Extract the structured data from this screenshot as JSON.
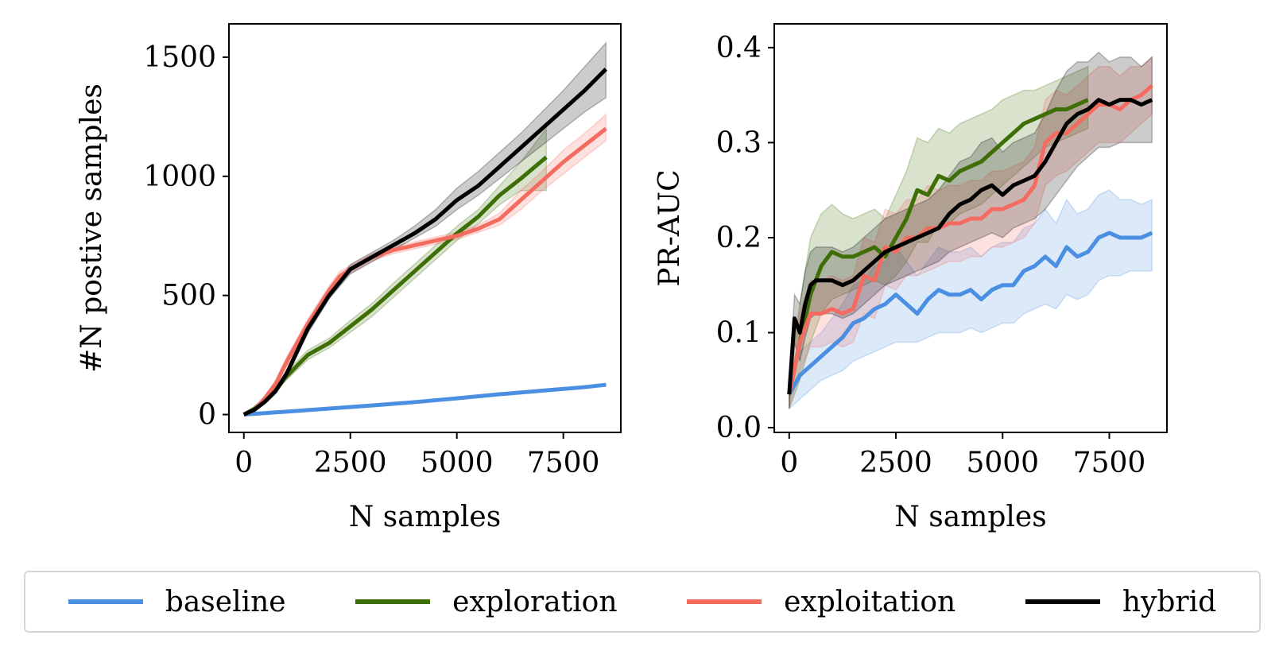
{
  "colors": {
    "baseline": "#4a8fe2",
    "exploration": "#3e6e06",
    "exploitation": "#f46b60",
    "hybrid": "#000000"
  },
  "legend": {
    "placement": "bottom",
    "items": [
      {
        "key": "baseline",
        "label": "baseline"
      },
      {
        "key": "exploration",
        "label": "exploration"
      },
      {
        "key": "exploitation",
        "label": "exploitation"
      },
      {
        "key": "hybrid",
        "label": "hybrid"
      }
    ]
  },
  "chart_data": [
    {
      "type": "line",
      "xlabel": "N samples",
      "ylabel": "#N postive samples",
      "xlim": [
        -350,
        8850
      ],
      "ylim": [
        -75,
        1640
      ],
      "xticks": [
        0,
        2500,
        5000,
        7500
      ],
      "yticks": [
        0,
        500,
        1000,
        1500
      ],
      "grid": false,
      "series": [
        {
          "name": "baseline",
          "key": "baseline",
          "x": [
            0,
            1000,
            2000,
            3000,
            4000,
            5000,
            6000,
            7000,
            8000,
            8500
          ],
          "y": [
            0,
            12,
            25,
            38,
            52,
            68,
            85,
            100,
            115,
            125
          ],
          "band_low": [
            0,
            10,
            22,
            35,
            49,
            65,
            82,
            97,
            112,
            121
          ],
          "band_high": [
            0,
            14,
            28,
            41,
            55,
            71,
            88,
            103,
            118,
            129
          ]
        },
        {
          "name": "exploration",
          "key": "exploration",
          "x": [
            0,
            250,
            500,
            750,
            1000,
            1500,
            2000,
            2500,
            3000,
            3500,
            4000,
            4500,
            5000,
            5500,
            6000,
            6500,
            7100
          ],
          "y": [
            0,
            25,
            65,
            105,
            160,
            250,
            300,
            370,
            440,
            520,
            600,
            680,
            760,
            830,
            920,
            990,
            1080
          ],
          "band_low": [
            0,
            20,
            55,
            95,
            145,
            230,
            280,
            345,
            410,
            490,
            570,
            650,
            730,
            800,
            880,
            940,
            940
          ],
          "band_high": [
            0,
            30,
            75,
            120,
            180,
            270,
            320,
            395,
            465,
            550,
            630,
            710,
            790,
            860,
            960,
            1060,
            1200
          ]
        },
        {
          "name": "exploitation",
          "key": "exploitation",
          "x": [
            0,
            250,
            500,
            750,
            1000,
            1500,
            2000,
            2250,
            2500,
            3000,
            3500,
            4000,
            4500,
            5000,
            5500,
            6000,
            6500,
            7000,
            7500,
            8000,
            8500
          ],
          "y": [
            0,
            20,
            70,
            130,
            220,
            380,
            520,
            580,
            610,
            660,
            690,
            710,
            730,
            750,
            780,
            820,
            900,
            980,
            1060,
            1130,
            1200
          ],
          "band_low": [
            0,
            15,
            60,
            115,
            200,
            360,
            500,
            560,
            595,
            645,
            675,
            695,
            715,
            735,
            765,
            795,
            860,
            940,
            1010,
            1080,
            1150
          ],
          "band_high": [
            0,
            25,
            80,
            145,
            240,
            400,
            540,
            600,
            625,
            675,
            705,
            725,
            745,
            765,
            795,
            845,
            940,
            1020,
            1110,
            1180,
            1260
          ]
        },
        {
          "name": "hybrid",
          "key": "hybrid",
          "x": [
            0,
            250,
            500,
            750,
            1000,
            1500,
            2000,
            2500,
            3000,
            3500,
            4000,
            4500,
            5000,
            5500,
            6000,
            6500,
            7000,
            7500,
            8000,
            8500
          ],
          "y": [
            0,
            20,
            55,
            100,
            170,
            360,
            500,
            610,
            660,
            710,
            760,
            820,
            900,
            960,
            1040,
            1120,
            1200,
            1280,
            1360,
            1450
          ],
          "band_low": [
            0,
            15,
            45,
            88,
            155,
            340,
            485,
            590,
            640,
            690,
            740,
            790,
            860,
            920,
            990,
            1060,
            1130,
            1200,
            1270,
            1330
          ],
          "band_high": [
            0,
            25,
            65,
            112,
            185,
            380,
            515,
            630,
            680,
            730,
            790,
            860,
            950,
            1020,
            1100,
            1180,
            1270,
            1360,
            1460,
            1560
          ]
        }
      ]
    },
    {
      "type": "line",
      "xlabel": "N samples",
      "ylabel": "PR-AUC",
      "xlim": [
        -350,
        8850
      ],
      "ylim": [
        -0.005,
        0.425
      ],
      "xticks": [
        0,
        2500,
        5000,
        7500
      ],
      "yticks": [
        0.0,
        0.1,
        0.2,
        0.3,
        0.4
      ],
      "grid": false,
      "series": [
        {
          "name": "baseline",
          "key": "baseline",
          "x": [
            0,
            250,
            500,
            750,
            1000,
            1250,
            1500,
            1750,
            2000,
            2250,
            2500,
            2750,
            3000,
            3250,
            3500,
            3750,
            4000,
            4250,
            4500,
            4750,
            5000,
            5250,
            5500,
            5750,
            6000,
            6250,
            6500,
            6750,
            7000,
            7250,
            7500,
            7750,
            8000,
            8250,
            8500
          ],
          "y": [
            0.035,
            0.055,
            0.065,
            0.075,
            0.085,
            0.095,
            0.11,
            0.115,
            0.125,
            0.13,
            0.14,
            0.13,
            0.12,
            0.135,
            0.145,
            0.14,
            0.14,
            0.145,
            0.135,
            0.145,
            0.15,
            0.15,
            0.165,
            0.17,
            0.18,
            0.17,
            0.19,
            0.18,
            0.185,
            0.2,
            0.205,
            0.2,
            0.2,
            0.2,
            0.205
          ],
          "band_low": [
            0.02,
            0.03,
            0.04,
            0.05,
            0.055,
            0.06,
            0.07,
            0.075,
            0.08,
            0.085,
            0.09,
            0.09,
            0.09,
            0.095,
            0.1,
            0.1,
            0.1,
            0.105,
            0.1,
            0.105,
            0.11,
            0.11,
            0.12,
            0.125,
            0.13,
            0.125,
            0.14,
            0.135,
            0.14,
            0.155,
            0.16,
            0.16,
            0.165,
            0.165,
            0.165
          ],
          "band_high": [
            0.05,
            0.08,
            0.09,
            0.1,
            0.115,
            0.13,
            0.15,
            0.155,
            0.17,
            0.175,
            0.19,
            0.175,
            0.16,
            0.175,
            0.19,
            0.185,
            0.185,
            0.19,
            0.18,
            0.19,
            0.195,
            0.195,
            0.21,
            0.215,
            0.23,
            0.215,
            0.24,
            0.225,
            0.23,
            0.245,
            0.25,
            0.24,
            0.24,
            0.235,
            0.24
          ]
        },
        {
          "name": "exploration",
          "key": "exploration",
          "x": [
            0,
            250,
            500,
            750,
            1000,
            1250,
            1500,
            1750,
            2000,
            2250,
            2500,
            2750,
            3000,
            3250,
            3500,
            3750,
            4000,
            4250,
            4500,
            4750,
            5000,
            5250,
            5500,
            5750,
            6000,
            6250,
            6500,
            6750,
            7000
          ],
          "y": [
            0.035,
            0.09,
            0.14,
            0.17,
            0.185,
            0.18,
            0.18,
            0.185,
            0.19,
            0.18,
            0.2,
            0.22,
            0.25,
            0.245,
            0.265,
            0.26,
            0.27,
            0.275,
            0.28,
            0.29,
            0.3,
            0.31,
            0.32,
            0.325,
            0.33,
            0.335,
            0.335,
            0.34,
            0.345
          ],
          "band_low": [
            0.02,
            0.05,
            0.09,
            0.12,
            0.135,
            0.14,
            0.145,
            0.15,
            0.155,
            0.15,
            0.16,
            0.175,
            0.195,
            0.195,
            0.215,
            0.215,
            0.225,
            0.23,
            0.235,
            0.245,
            0.255,
            0.265,
            0.275,
            0.285,
            0.295,
            0.3,
            0.305,
            0.31,
            0.315
          ],
          "band_high": [
            0.05,
            0.13,
            0.2,
            0.225,
            0.235,
            0.225,
            0.22,
            0.225,
            0.23,
            0.22,
            0.245,
            0.27,
            0.305,
            0.3,
            0.315,
            0.31,
            0.32,
            0.325,
            0.33,
            0.335,
            0.345,
            0.35,
            0.355,
            0.355,
            0.36,
            0.365,
            0.37,
            0.375,
            0.38
          ]
        },
        {
          "name": "exploitation",
          "key": "exploitation",
          "x": [
            0,
            250,
            500,
            750,
            1000,
            1250,
            1500,
            1750,
            2000,
            2250,
            2500,
            2750,
            3000,
            3250,
            3500,
            3750,
            4000,
            4250,
            4500,
            4750,
            5000,
            5250,
            5500,
            5750,
            6000,
            6250,
            6500,
            6750,
            7000,
            7250,
            7500,
            7750,
            8000,
            8250,
            8500
          ],
          "y": [
            0.035,
            0.09,
            0.12,
            0.12,
            0.125,
            0.12,
            0.125,
            0.16,
            0.155,
            0.19,
            0.185,
            0.2,
            0.2,
            0.21,
            0.21,
            0.215,
            0.215,
            0.22,
            0.22,
            0.23,
            0.23,
            0.235,
            0.24,
            0.255,
            0.3,
            0.31,
            0.31,
            0.32,
            0.33,
            0.34,
            0.34,
            0.335,
            0.345,
            0.35,
            0.36
          ],
          "band_low": [
            0.02,
            0.06,
            0.085,
            0.085,
            0.09,
            0.085,
            0.09,
            0.12,
            0.115,
            0.15,
            0.145,
            0.16,
            0.16,
            0.165,
            0.17,
            0.175,
            0.175,
            0.18,
            0.18,
            0.19,
            0.19,
            0.195,
            0.2,
            0.215,
            0.255,
            0.265,
            0.27,
            0.28,
            0.29,
            0.3,
            0.3,
            0.3,
            0.31,
            0.32,
            0.33
          ],
          "band_high": [
            0.05,
            0.12,
            0.155,
            0.155,
            0.16,
            0.155,
            0.16,
            0.2,
            0.195,
            0.23,
            0.225,
            0.24,
            0.24,
            0.255,
            0.25,
            0.255,
            0.255,
            0.26,
            0.26,
            0.27,
            0.27,
            0.275,
            0.28,
            0.295,
            0.345,
            0.355,
            0.35,
            0.36,
            0.37,
            0.38,
            0.38,
            0.37,
            0.38,
            0.38,
            0.39
          ]
        },
        {
          "name": "hybrid",
          "key": "hybrid",
          "x": [
            0,
            125,
            250,
            375,
            500,
            625,
            750,
            1000,
            1250,
            1500,
            1750,
            2000,
            2250,
            2500,
            2750,
            3000,
            3250,
            3500,
            3750,
            4000,
            4250,
            4500,
            4750,
            5000,
            5250,
            5500,
            5750,
            6000,
            6250,
            6500,
            6750,
            7000,
            7250,
            7500,
            7750,
            8000,
            8250,
            8500
          ],
          "y": [
            0.035,
            0.115,
            0.1,
            0.13,
            0.15,
            0.155,
            0.155,
            0.155,
            0.15,
            0.155,
            0.165,
            0.175,
            0.185,
            0.19,
            0.195,
            0.2,
            0.205,
            0.21,
            0.225,
            0.235,
            0.24,
            0.25,
            0.255,
            0.245,
            0.255,
            0.26,
            0.265,
            0.28,
            0.3,
            0.32,
            0.33,
            0.335,
            0.345,
            0.34,
            0.345,
            0.345,
            0.34,
            0.345
          ],
          "band_low": [
            0.02,
            0.09,
            0.07,
            0.095,
            0.115,
            0.12,
            0.12,
            0.12,
            0.115,
            0.12,
            0.13,
            0.14,
            0.15,
            0.155,
            0.16,
            0.165,
            0.17,
            0.175,
            0.185,
            0.19,
            0.195,
            0.2,
            0.205,
            0.2,
            0.21,
            0.215,
            0.22,
            0.23,
            0.245,
            0.26,
            0.275,
            0.285,
            0.295,
            0.295,
            0.3,
            0.3,
            0.3,
            0.3
          ],
          "band_high": [
            0.05,
            0.14,
            0.13,
            0.165,
            0.185,
            0.19,
            0.19,
            0.19,
            0.185,
            0.19,
            0.2,
            0.21,
            0.22,
            0.225,
            0.23,
            0.235,
            0.24,
            0.25,
            0.265,
            0.28,
            0.285,
            0.3,
            0.305,
            0.29,
            0.3,
            0.305,
            0.31,
            0.33,
            0.355,
            0.375,
            0.385,
            0.385,
            0.395,
            0.385,
            0.39,
            0.39,
            0.38,
            0.39
          ]
        }
      ]
    }
  ]
}
